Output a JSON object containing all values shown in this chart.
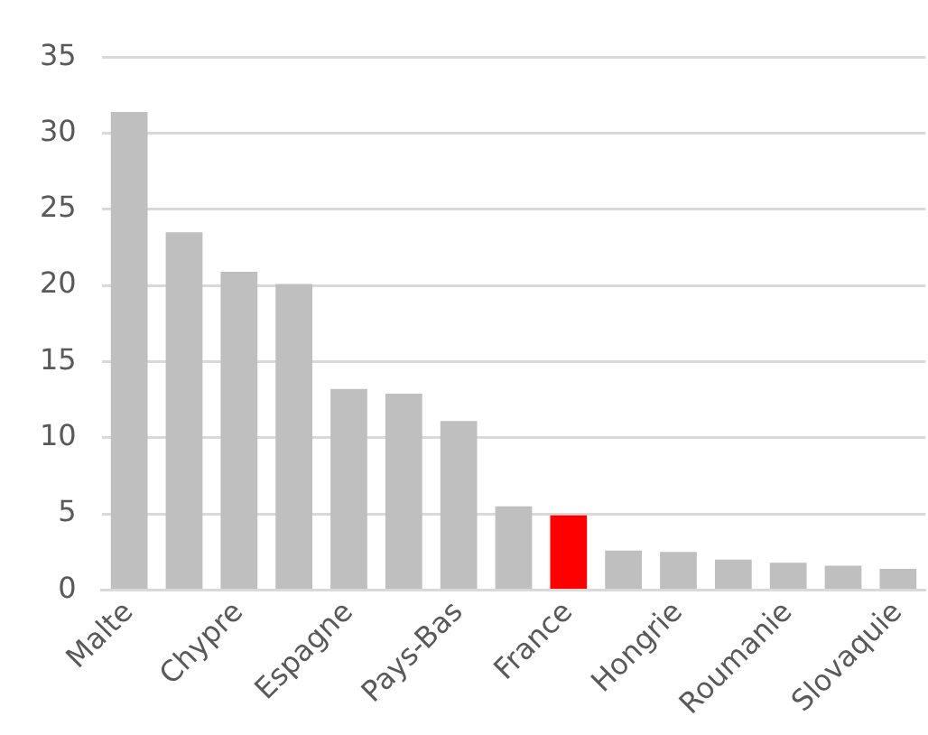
{
  "chart_data": {
    "type": "bar",
    "categories": [
      "Malte",
      null,
      "Chypre",
      null,
      "Espagne",
      null,
      "Pays-Bas",
      null,
      "France",
      null,
      "Hongrie",
      null,
      "Roumanie",
      null,
      "Slovaquie"
    ],
    "values": [
      31.4,
      23.5,
      20.9,
      20.1,
      13.2,
      12.9,
      11.1,
      5.5,
      4.9,
      2.6,
      2.5,
      2.0,
      1.8,
      1.6,
      1.4
    ],
    "colors": [
      "#bfbfbf",
      "#bfbfbf",
      "#bfbfbf",
      "#bfbfbf",
      "#bfbfbf",
      "#bfbfbf",
      "#bfbfbf",
      "#bfbfbf",
      "#ff0000",
      "#bfbfbf",
      "#bfbfbf",
      "#bfbfbf",
      "#bfbfbf",
      "#bfbfbf",
      "#bfbfbf"
    ],
    "ylim": [
      0,
      35
    ],
    "yticks": [
      0,
      5,
      10,
      15,
      20,
      25,
      30,
      35
    ],
    "grid": "y"
  }
}
